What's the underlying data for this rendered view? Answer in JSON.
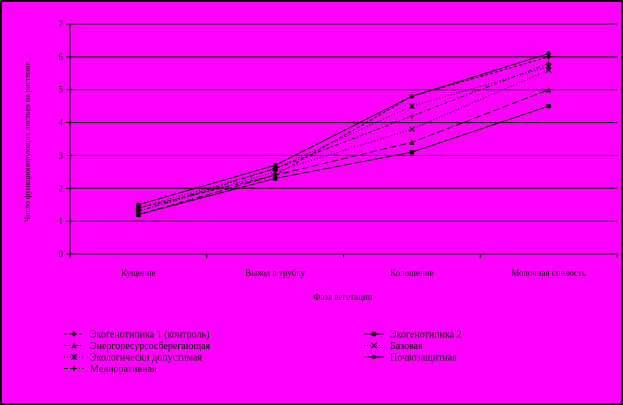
{
  "colors": {
    "background": "#ff00ff",
    "ink": "#000000"
  },
  "chart_data": {
    "type": "line",
    "xlabel": "Фаза вегетации",
    "ylabel": "Число функционирующих листьев на растение",
    "ylim": [
      0,
      7
    ],
    "yticks": [
      "0",
      "1",
      "2",
      "3",
      "4",
      "5",
      "6",
      "7"
    ],
    "categories": [
      "Кущение",
      "Выход в трубку",
      "Колошение",
      "Молочная спелость"
    ],
    "grid": true,
    "legend_position": "bottom",
    "series": [
      {
        "name": "Экогенотипика 1 (контроль)",
        "values": [
          1.4,
          2.4,
          4.8,
          6.0
        ],
        "marker": "diamond",
        "dash": "3,2"
      },
      {
        "name": "Экогенотипика 2",
        "values": [
          1.2,
          2.3,
          3.1,
          4.5
        ],
        "marker": "square",
        "dash": ""
      },
      {
        "name": "Энергоресурсосберегающая",
        "values": [
          1.2,
          2.4,
          3.4,
          5.0
        ],
        "marker": "triangle",
        "dash": "7,3"
      },
      {
        "name": "Базовая",
        "values": [
          1.3,
          2.5,
          3.8,
          5.6
        ],
        "marker": "x",
        "dash": "1,2"
      },
      {
        "name": "Экологически допустимая",
        "values": [
          1.4,
          2.6,
          4.5,
          5.7
        ],
        "marker": "star",
        "dash": "1,2"
      },
      {
        "name": "Почвозащитная",
        "values": [
          1.5,
          2.7,
          4.8,
          6.1
        ],
        "marker": "circle",
        "dash": ""
      },
      {
        "name": "Мелиоративная",
        "values": [
          1.3,
          2.6,
          4.2,
          5.8
        ],
        "marker": "plus",
        "dash": "4,2,1,2"
      }
    ]
  }
}
